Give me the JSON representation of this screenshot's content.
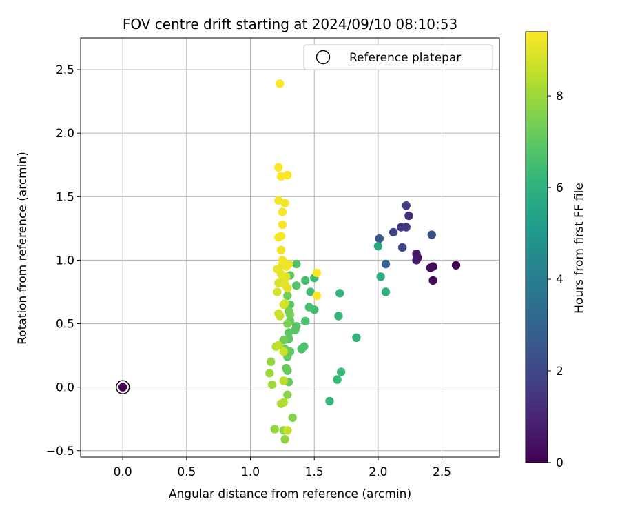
{
  "chart_data": {
    "type": "scatter",
    "title": "FOV centre drift starting at 2024/09/10 08:10:53",
    "xlabel": "Angular distance from reference (arcmin)",
    "ylabel": "Rotation from reference (arcmin)",
    "xlim": [
      -0.33,
      2.95
    ],
    "ylim": [
      -0.55,
      2.75
    ],
    "xticks": [
      0.0,
      0.5,
      1.0,
      1.5,
      2.0,
      2.5
    ],
    "xtick_labels": [
      "0.0",
      "0.5",
      "1.0",
      "1.5",
      "2.0",
      "2.5"
    ],
    "yticks": [
      -0.5,
      0.0,
      0.5,
      1.0,
      1.5,
      2.0,
      2.5
    ],
    "ytick_labels": [
      "−0.5",
      "0.0",
      "0.5",
      "1.0",
      "1.5",
      "2.0",
      "2.5"
    ],
    "grid": true,
    "legend": {
      "position": "top-right",
      "entries": [
        "Reference platepar"
      ]
    },
    "colorbar": {
      "label": "Hours from first FF file",
      "range": [
        0,
        9.4
      ],
      "ticks": [
        0,
        2,
        4,
        6,
        8
      ],
      "tick_labels": [
        "0",
        "2",
        "4",
        "6",
        "8"
      ],
      "colormap": "viridis"
    },
    "reference_point": {
      "x": 0.0,
      "y": 0.0,
      "c": 0.0
    },
    "points": [
      {
        "x": 2.61,
        "y": 0.96,
        "c": 0.1
      },
      {
        "x": 2.43,
        "y": 0.95,
        "c": 0.2
      },
      {
        "x": 2.41,
        "y": 0.94,
        "c": 0.3
      },
      {
        "x": 2.43,
        "y": 0.84,
        "c": 0.3
      },
      {
        "x": 2.31,
        "y": 1.02,
        "c": 0.5
      },
      {
        "x": 2.3,
        "y": 1.05,
        "c": 0.6
      },
      {
        "x": 2.3,
        "y": 1.0,
        "c": 0.7
      },
      {
        "x": 2.24,
        "y": 1.35,
        "c": 1.3
      },
      {
        "x": 2.22,
        "y": 1.43,
        "c": 1.7
      },
      {
        "x": 2.22,
        "y": 1.26,
        "c": 1.4
      },
      {
        "x": 2.18,
        "y": 1.26,
        "c": 1.5
      },
      {
        "x": 2.12,
        "y": 1.22,
        "c": 1.9
      },
      {
        "x": 2.42,
        "y": 1.2,
        "c": 2.3
      },
      {
        "x": 2.19,
        "y": 1.1,
        "c": 2.0
      },
      {
        "x": 2.01,
        "y": 1.17,
        "c": 2.5
      },
      {
        "x": 2.06,
        "y": 0.97,
        "c": 2.8
      },
      {
        "x": 2.0,
        "y": 1.11,
        "c": 5.7
      },
      {
        "x": 2.02,
        "y": 0.87,
        "c": 5.8
      },
      {
        "x": 2.06,
        "y": 0.75,
        "c": 6.0
      },
      {
        "x": 1.83,
        "y": 0.39,
        "c": 6.1
      },
      {
        "x": 1.7,
        "y": 0.74,
        "c": 6.2
      },
      {
        "x": 1.69,
        "y": 0.56,
        "c": 6.2
      },
      {
        "x": 1.71,
        "y": 0.12,
        "c": 6.3
      },
      {
        "x": 1.68,
        "y": 0.06,
        "c": 6.3
      },
      {
        "x": 1.62,
        "y": -0.11,
        "c": 6.2
      },
      {
        "x": 1.5,
        "y": 0.86,
        "c": 6.5
      },
      {
        "x": 1.47,
        "y": 0.75,
        "c": 6.5
      },
      {
        "x": 1.5,
        "y": 0.61,
        "c": 6.6
      },
      {
        "x": 1.46,
        "y": 0.63,
        "c": 6.6
      },
      {
        "x": 1.43,
        "y": 0.84,
        "c": 6.6
      },
      {
        "x": 1.43,
        "y": 0.52,
        "c": 6.7
      },
      {
        "x": 1.42,
        "y": 0.32,
        "c": 6.7
      },
      {
        "x": 1.4,
        "y": 0.3,
        "c": 6.7
      },
      {
        "x": 1.36,
        "y": 0.97,
        "c": 6.8
      },
      {
        "x": 1.36,
        "y": 0.8,
        "c": 6.8
      },
      {
        "x": 1.36,
        "y": 0.48,
        "c": 6.8
      },
      {
        "x": 1.35,
        "y": 0.45,
        "c": 6.9
      },
      {
        "x": 1.31,
        "y": 0.88,
        "c": 6.9
      },
      {
        "x": 1.31,
        "y": 0.65,
        "c": 6.9
      },
      {
        "x": 1.31,
        "y": 0.52,
        "c": 7.0
      },
      {
        "x": 1.3,
        "y": 0.43,
        "c": 7.0
      },
      {
        "x": 1.3,
        "y": 0.38,
        "c": 7.0
      },
      {
        "x": 1.31,
        "y": 0.28,
        "c": 7.1
      },
      {
        "x": 1.29,
        "y": 0.24,
        "c": 7.1
      },
      {
        "x": 1.29,
        "y": 0.13,
        "c": 7.1
      },
      {
        "x": 1.3,
        "y": 0.04,
        "c": 7.2
      },
      {
        "x": 1.28,
        "y": 0.15,
        "c": 7.2
      },
      {
        "x": 1.27,
        "y": 0.3,
        "c": 7.2
      },
      {
        "x": 1.26,
        "y": 0.37,
        "c": 7.3
      },
      {
        "x": 1.29,
        "y": 0.72,
        "c": 7.3
      },
      {
        "x": 1.3,
        "y": 0.6,
        "c": 7.4
      },
      {
        "x": 1.31,
        "y": 0.57,
        "c": 7.4
      },
      {
        "x": 1.29,
        "y": 0.5,
        "c": 7.5
      },
      {
        "x": 1.33,
        "y": -0.24,
        "c": 7.6
      },
      {
        "x": 1.29,
        "y": -0.06,
        "c": 7.7
      },
      {
        "x": 1.26,
        "y": -0.34,
        "c": 7.8
      },
      {
        "x": 1.27,
        "y": -0.41,
        "c": 7.8
      },
      {
        "x": 1.19,
        "y": -0.33,
        "c": 7.9
      },
      {
        "x": 1.16,
        "y": 0.2,
        "c": 7.9
      },
      {
        "x": 1.15,
        "y": 0.11,
        "c": 8.0
      },
      {
        "x": 1.17,
        "y": 0.02,
        "c": 8.0
      },
      {
        "x": 1.24,
        "y": -0.13,
        "c": 8.2
      },
      {
        "x": 1.26,
        "y": -0.12,
        "c": 8.3
      },
      {
        "x": 1.29,
        "y": -0.34,
        "c": 8.6
      },
      {
        "x": 1.26,
        "y": 0.05,
        "c": 8.5
      },
      {
        "x": 1.2,
        "y": 0.32,
        "c": 8.3
      },
      {
        "x": 1.22,
        "y": 0.33,
        "c": 8.5
      },
      {
        "x": 1.26,
        "y": 0.28,
        "c": 8.7
      },
      {
        "x": 1.23,
        "y": 0.56,
        "c": 8.6
      },
      {
        "x": 1.22,
        "y": 0.58,
        "c": 8.7
      },
      {
        "x": 1.26,
        "y": 0.65,
        "c": 8.7
      },
      {
        "x": 1.27,
        "y": 0.66,
        "c": 8.8
      },
      {
        "x": 1.21,
        "y": 0.75,
        "c": 8.8
      },
      {
        "x": 1.22,
        "y": 0.82,
        "c": 8.9
      },
      {
        "x": 1.25,
        "y": 0.84,
        "c": 8.9
      },
      {
        "x": 1.27,
        "y": 0.81,
        "c": 9.0
      },
      {
        "x": 1.29,
        "y": 0.78,
        "c": 9.0
      },
      {
        "x": 1.28,
        "y": 0.87,
        "c": 9.0
      },
      {
        "x": 1.24,
        "y": 0.89,
        "c": 9.1
      },
      {
        "x": 1.21,
        "y": 0.93,
        "c": 9.1
      },
      {
        "x": 1.25,
        "y": 0.96,
        "c": 9.1
      },
      {
        "x": 1.28,
        "y": 0.95,
        "c": 9.2
      },
      {
        "x": 1.3,
        "y": 0.97,
        "c": 9.2
      },
      {
        "x": 1.25,
        "y": 1.0,
        "c": 9.2
      },
      {
        "x": 1.24,
        "y": 1.08,
        "c": 9.2
      },
      {
        "x": 1.22,
        "y": 1.18,
        "c": 9.3
      },
      {
        "x": 1.24,
        "y": 1.19,
        "c": 9.3
      },
      {
        "x": 1.25,
        "y": 1.28,
        "c": 9.3
      },
      {
        "x": 1.25,
        "y": 1.38,
        "c": 9.3
      },
      {
        "x": 1.27,
        "y": 1.45,
        "c": 9.3
      },
      {
        "x": 1.22,
        "y": 1.47,
        "c": 9.3
      },
      {
        "x": 1.24,
        "y": 1.66,
        "c": 9.4
      },
      {
        "x": 1.29,
        "y": 1.67,
        "c": 9.4
      },
      {
        "x": 1.22,
        "y": 1.73,
        "c": 9.4
      },
      {
        "x": 1.23,
        "y": 2.39,
        "c": 9.4
      },
      {
        "x": 1.52,
        "y": 0.9,
        "c": 9.4
      },
      {
        "x": 1.52,
        "y": 0.72,
        "c": 9.4
      }
    ]
  }
}
